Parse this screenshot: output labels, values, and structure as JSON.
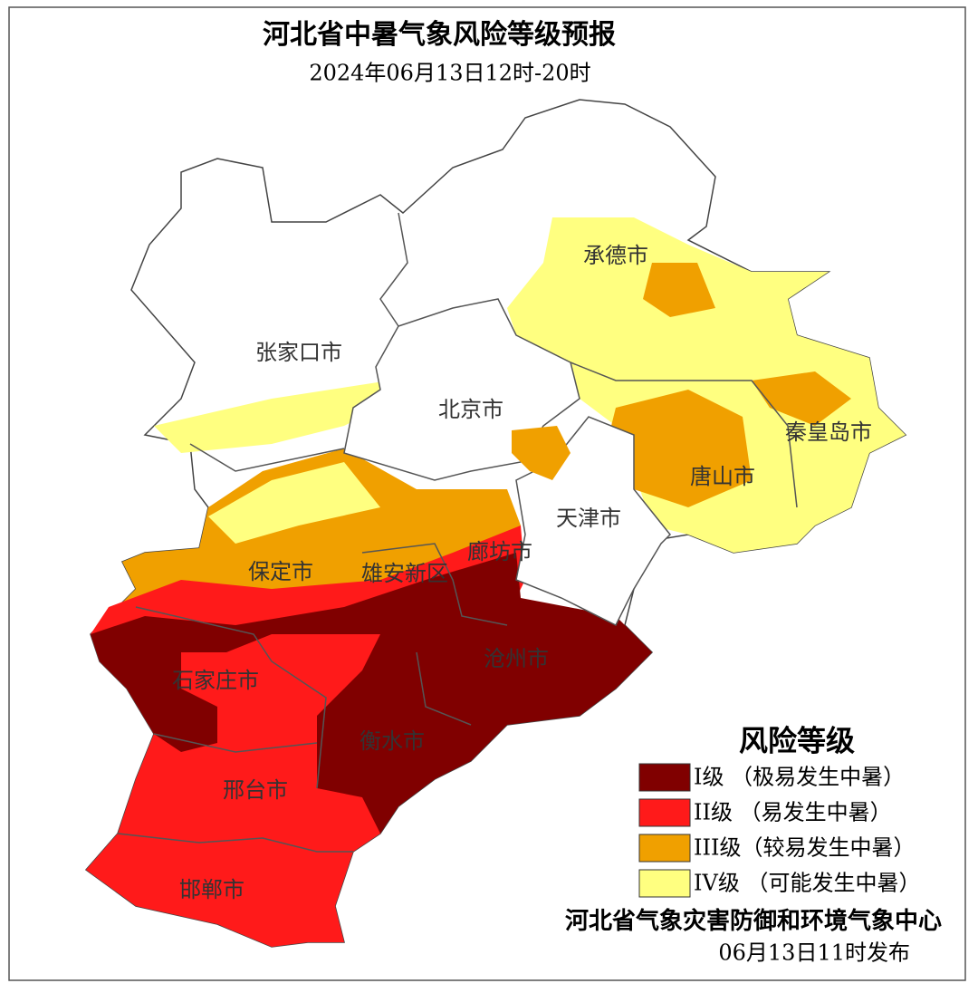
{
  "header": {
    "title": "河北省中暑气象风险等级预报",
    "subtitle": "2024年06月13日12时-20时"
  },
  "map": {
    "labels": [
      "张家口市",
      "北京市",
      "承德市",
      "秦皇岛市",
      "唐山市",
      "天津市",
      "廊坊市",
      "保定市",
      "雄安新区",
      "石家庄市",
      "沧州市",
      "衡水市",
      "邢台市",
      "邯郸市"
    ]
  },
  "legend": {
    "title": "风险等级",
    "items": [
      {
        "label": "I级 （极易发生中暑）",
        "color": "#800000"
      },
      {
        "label": "II级 （易发生中暑）",
        "color": "#ff1a1a"
      },
      {
        "label": "III级（较易发生中暑）",
        "color": "#f0a000"
      },
      {
        "label": "IV级 （可能发生中暑）",
        "color": "#ffff80"
      }
    ]
  },
  "footer": {
    "issuer": "河北省气象灾害防御和环境气象中心",
    "issued": "06月13日11时发布"
  }
}
